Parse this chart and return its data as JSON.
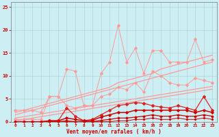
{
  "x": [
    0,
    1,
    2,
    3,
    4,
    5,
    6,
    7,
    8,
    9,
    10,
    11,
    12,
    13,
    14,
    15,
    16,
    17,
    18,
    19,
    20,
    21,
    22,
    23
  ],
  "series_light_pink_ragged": [
    0.5,
    0.5,
    0.5,
    0.5,
    5.5,
    5.5,
    11.5,
    11.0,
    3.5,
    3.5,
    10.5,
    13.0,
    21.0,
    13.0,
    16.0,
    10.5,
    15.5,
    15.5,
    13.0,
    13.0,
    13.0,
    18.0,
    13.0,
    13.5
  ],
  "series_light_pink_smooth": [
    2.5,
    2.5,
    2.5,
    2.0,
    5.5,
    5.5,
    3.5,
    3.0,
    3.5,
    3.5,
    5.5,
    6.0,
    7.5,
    7.0,
    8.5,
    6.5,
    11.0,
    10.0,
    8.5,
    8.0,
    8.0,
    9.5,
    9.0,
    8.5
  ],
  "series_trend_upper_1": [
    2.0,
    2.5,
    3.0,
    3.5,
    4.0,
    4.5,
    5.0,
    5.5,
    6.0,
    6.5,
    7.0,
    7.5,
    8.5,
    9.0,
    9.5,
    10.0,
    10.5,
    11.5,
    12.0,
    12.5,
    13.0,
    13.5,
    14.0,
    14.5
  ],
  "series_trend_upper_2": [
    1.5,
    2.0,
    2.5,
    3.0,
    3.5,
    4.0,
    4.5,
    5.0,
    5.5,
    6.0,
    6.5,
    7.0,
    7.5,
    8.0,
    8.5,
    9.0,
    9.5,
    10.0,
    10.5,
    11.0,
    11.5,
    12.0,
    12.5,
    13.0
  ],
  "series_trend_lower_1": [
    0.8,
    1.1,
    1.4,
    1.7,
    2.0,
    2.3,
    2.6,
    2.9,
    3.2,
    3.5,
    3.8,
    4.1,
    4.4,
    4.7,
    5.0,
    5.3,
    5.6,
    5.9,
    6.2,
    6.5,
    6.8,
    7.1,
    7.4,
    7.7
  ],
  "series_trend_lower_2": [
    0.2,
    0.5,
    0.8,
    1.1,
    1.4,
    1.7,
    2.0,
    2.3,
    2.6,
    2.9,
    3.2,
    3.5,
    3.8,
    4.1,
    4.4,
    4.7,
    5.0,
    5.3,
    5.6,
    5.9,
    6.2,
    6.5,
    6.8,
    7.1
  ],
  "series_dark_red_top": [
    0.0,
    0.0,
    0.0,
    0.0,
    0.2,
    0.2,
    3.0,
    1.2,
    0.2,
    0.5,
    1.5,
    2.5,
    3.5,
    3.8,
    4.2,
    4.0,
    3.5,
    3.2,
    3.0,
    3.5,
    3.0,
    2.5,
    5.5,
    2.5
  ],
  "series_dark_red_mid": [
    0.0,
    0.0,
    0.0,
    0.0,
    0.2,
    0.2,
    0.8,
    0.5,
    0.2,
    0.3,
    1.0,
    1.5,
    2.0,
    2.0,
    2.5,
    2.5,
    2.5,
    2.5,
    2.5,
    2.5,
    2.5,
    2.0,
    2.5,
    2.0
  ],
  "series_dark_red_low1": [
    0.0,
    0.0,
    0.0,
    0.0,
    0.0,
    0.0,
    0.2,
    0.0,
    0.0,
    0.0,
    0.3,
    0.5,
    0.8,
    0.8,
    1.0,
    1.2,
    1.5,
    1.2,
    1.2,
    1.5,
    1.2,
    1.2,
    1.5,
    1.2
  ],
  "series_dark_red_low2": [
    0.0,
    0.0,
    0.0,
    0.0,
    0.0,
    0.0,
    0.0,
    0.0,
    0.0,
    0.0,
    0.0,
    0.0,
    0.2,
    0.2,
    0.5,
    0.5,
    0.8,
    0.5,
    0.5,
    0.8,
    0.5,
    0.5,
    0.8,
    0.5
  ],
  "bg_color": "#cdeef2",
  "grid_color": "#aed8dc",
  "light_pink": "#ff9999",
  "dark_red": "#cc0000",
  "medium_red": "#dd2222",
  "xlabel": "Vent moyen/en rafales ( km/h )",
  "xlim": [
    -0.5,
    23.5
  ],
  "ylim": [
    0,
    26
  ],
  "yticks": [
    0,
    5,
    10,
    15,
    20,
    25
  ],
  "xticks": [
    0,
    1,
    2,
    3,
    4,
    5,
    6,
    7,
    8,
    9,
    10,
    11,
    12,
    13,
    14,
    15,
    16,
    17,
    18,
    19,
    20,
    21,
    22,
    23
  ],
  "tick_color": "#cc0000",
  "axis_color": "#888888"
}
